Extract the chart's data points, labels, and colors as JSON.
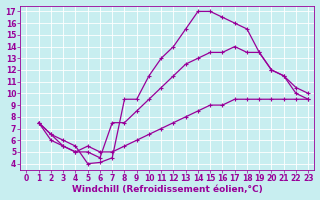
{
  "background_color": "#c8eef0",
  "grid_color": "#aadddd",
  "line_color": "#990099",
  "xlabel": "Windchill (Refroidissement éolien,°C)",
  "xlabel_fontsize": 6.5,
  "tick_fontsize": 5.5,
  "xlim": [
    -0.5,
    23.5
  ],
  "ylim": [
    3.5,
    17.5
  ],
  "xticks": [
    0,
    1,
    2,
    3,
    4,
    5,
    6,
    7,
    8,
    9,
    10,
    11,
    12,
    13,
    14,
    15,
    16,
    17,
    18,
    19,
    20,
    21,
    22,
    23
  ],
  "yticks": [
    4,
    5,
    6,
    7,
    8,
    9,
    10,
    11,
    12,
    13,
    14,
    15,
    16,
    17
  ],
  "curve1_x": [
    1,
    2,
    3,
    4,
    5,
    6,
    7,
    8,
    9,
    10,
    11,
    12,
    13,
    14,
    15,
    16,
    17,
    18,
    19,
    20,
    21,
    22,
    23
  ],
  "curve1_y": [
    7.5,
    6.5,
    6.0,
    5.5,
    4.0,
    4.1,
    4.5,
    9.5,
    9.5,
    11.5,
    13.0,
    14.0,
    15.5,
    17.0,
    17.0,
    16.5,
    16.0,
    15.5,
    13.5,
    12.0,
    11.5,
    10.0,
    9.5
  ],
  "curve2_x": [
    1,
    2,
    3,
    4,
    5,
    6,
    7,
    8,
    9,
    10,
    11,
    12,
    13,
    14,
    15,
    16,
    17,
    18,
    19,
    20,
    21,
    22,
    23
  ],
  "curve2_y": [
    7.5,
    6.0,
    5.5,
    5.0,
    5.0,
    4.5,
    7.5,
    7.5,
    8.5,
    9.5,
    10.5,
    11.5,
    12.5,
    13.0,
    13.5,
    13.5,
    14.0,
    13.5,
    13.5,
    12.0,
    11.5,
    10.5,
    10.0
  ],
  "curve3_x": [
    1,
    2,
    3,
    4,
    5,
    6,
    7,
    8,
    9,
    10,
    11,
    12,
    13,
    14,
    15,
    16,
    17,
    18,
    19,
    20,
    21,
    22,
    23
  ],
  "curve3_y": [
    7.5,
    6.5,
    5.5,
    5.0,
    5.5,
    5.0,
    5.0,
    5.5,
    6.0,
    6.5,
    7.0,
    7.5,
    8.0,
    8.5,
    9.0,
    9.0,
    9.5,
    9.5,
    9.5,
    9.5,
    9.5,
    9.5,
    9.5
  ]
}
